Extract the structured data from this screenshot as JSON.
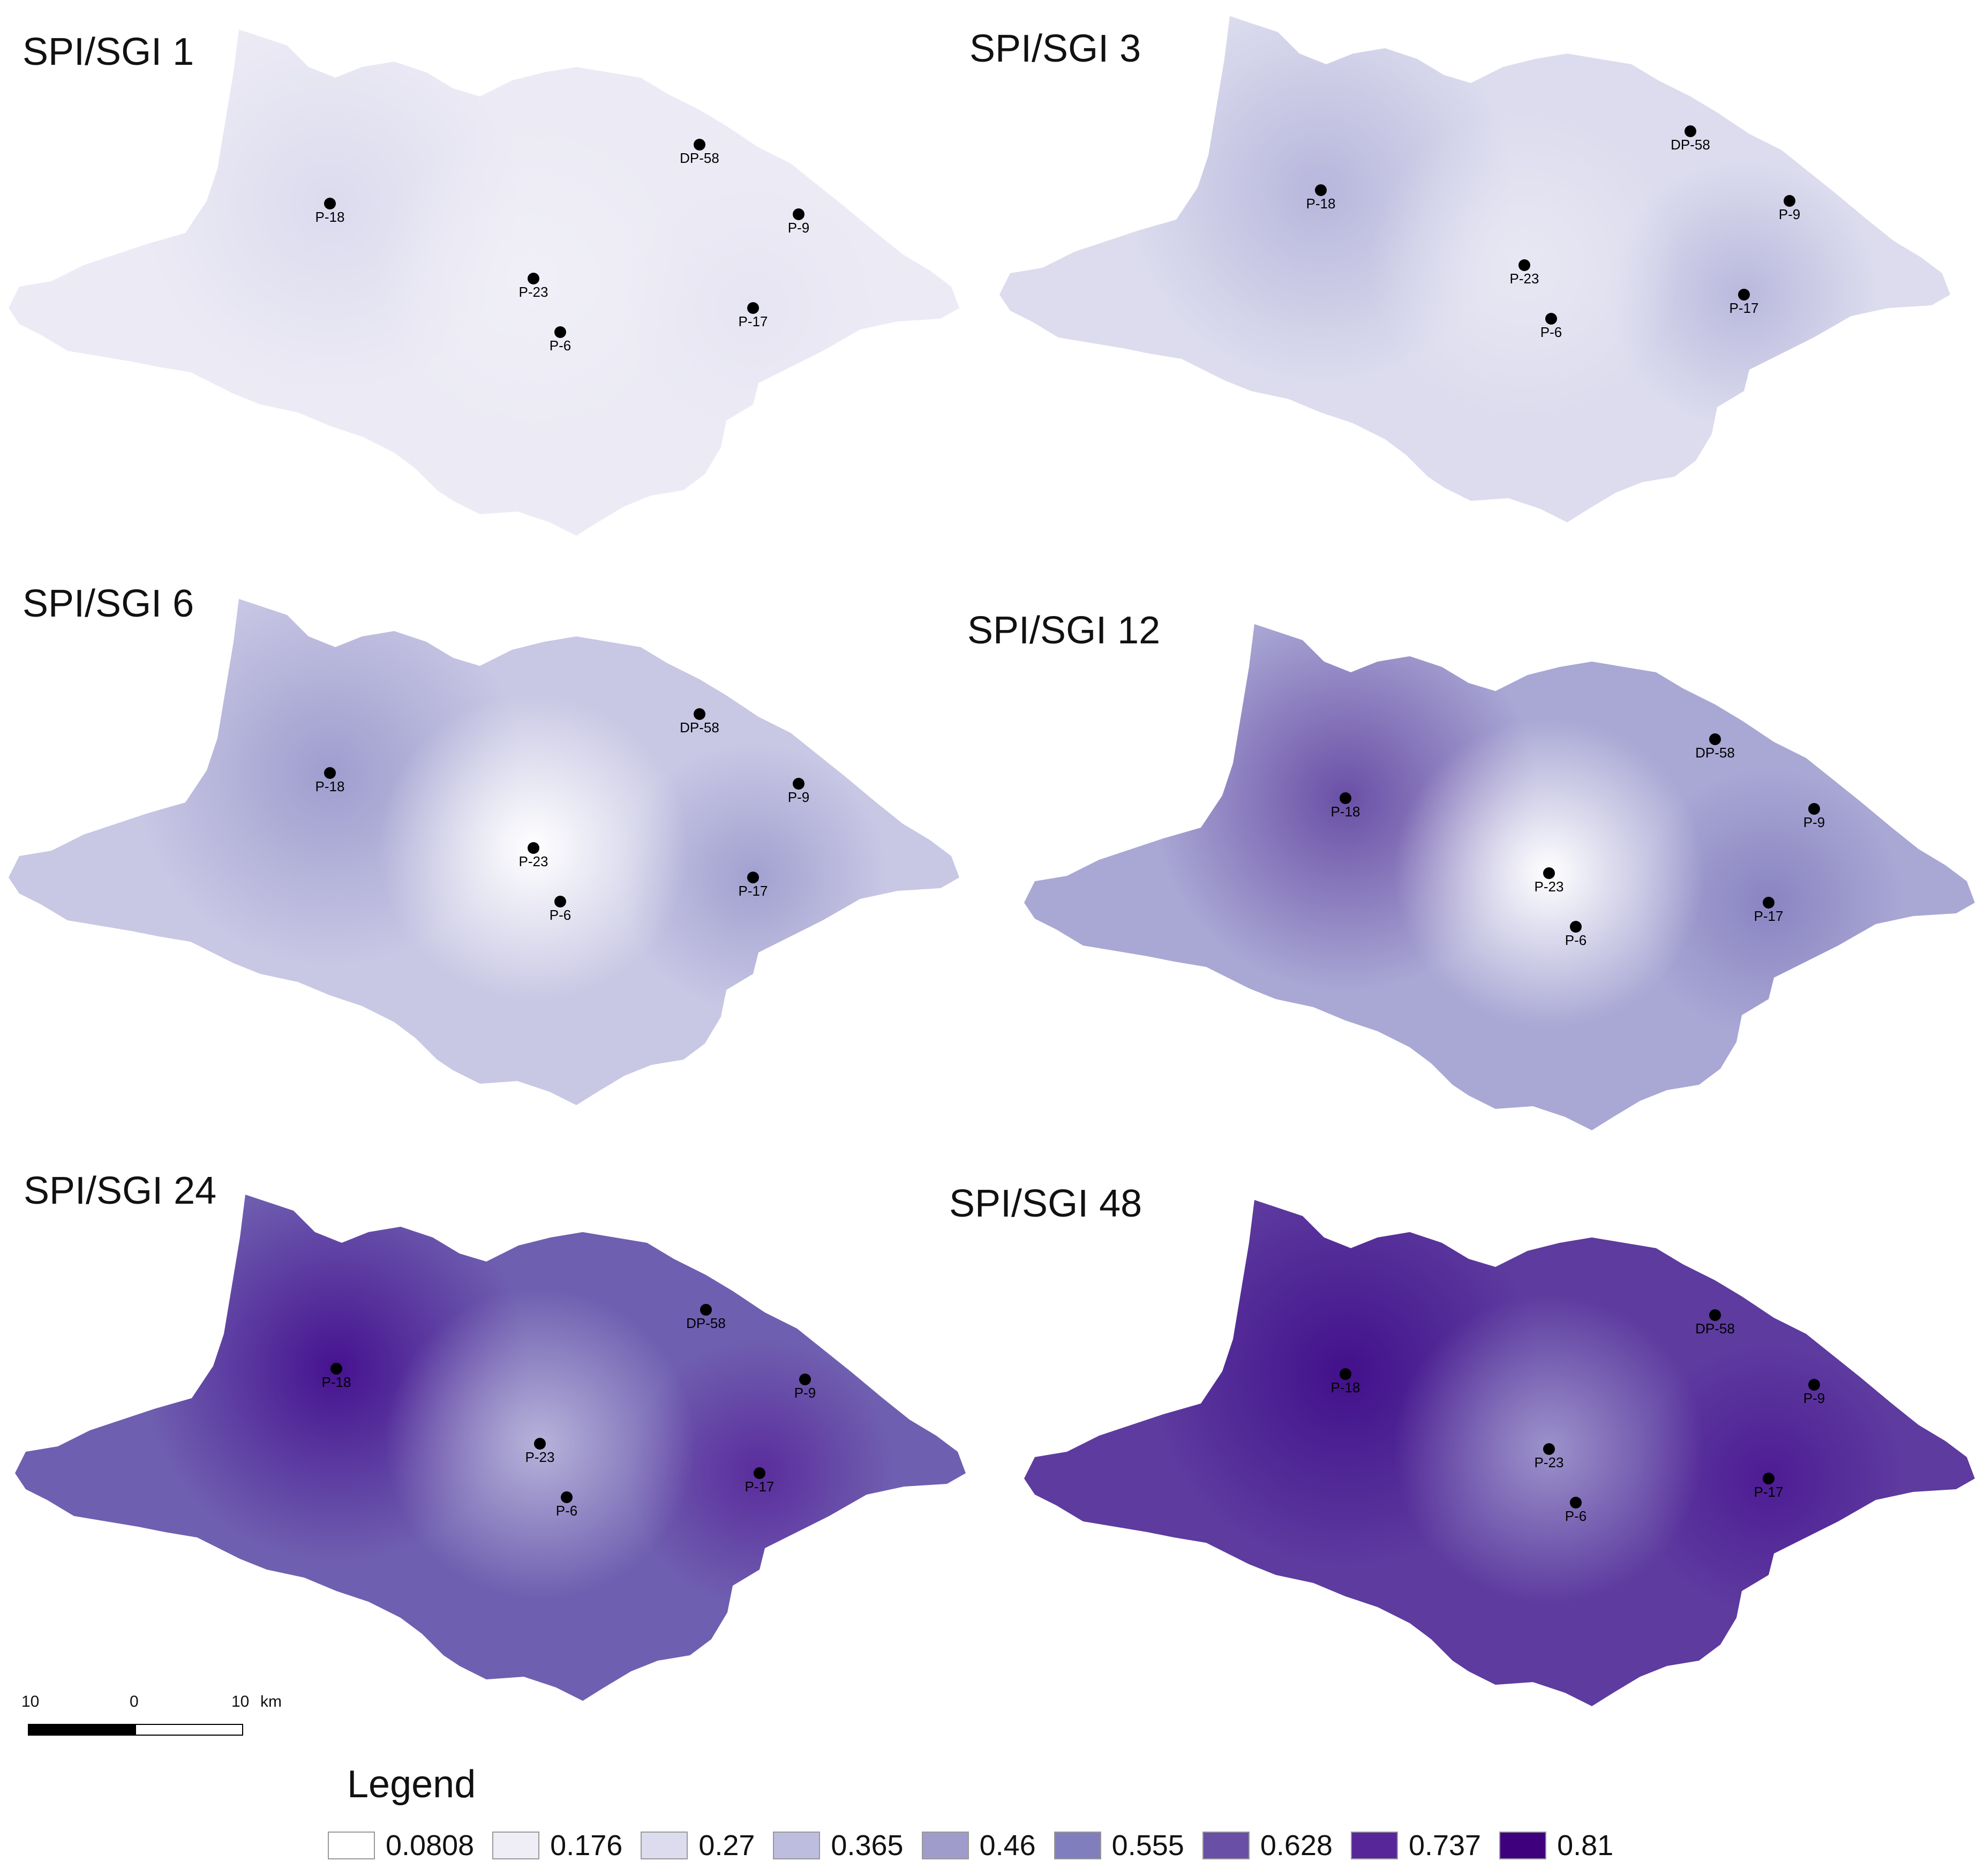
{
  "panels": [
    {
      "title": "SPI/SGI 1",
      "base": "#ecebf5",
      "hot": {
        "P-18": "#dcdbee",
        "P-17": "#e6e5f2",
        "P-23": "#f0eff7"
      }
    },
    {
      "title": "SPI/SGI 3",
      "base": "#dcdcee",
      "hot": {
        "P-18": "#b7b6dc",
        "P-17": "#b9b8dd",
        "P-23": "#e8e8f4"
      }
    },
    {
      "title": "SPI/SGI 6",
      "base": "#c8c7e4",
      "hot": {
        "P-18": "#9f9dce",
        "P-17": "#a2a0d0",
        "P-23": "#ffffff"
      }
    },
    {
      "title": "SPI/SGI 12",
      "base": "#a9a7d4",
      "hot": {
        "P-18": "#6a4fa6",
        "P-17": "#8a84c2",
        "P-23": "#ffffff"
      }
    },
    {
      "title": "SPI/SGI 24",
      "base": "#6f5fb0",
      "hot": {
        "P-18": "#46128f",
        "P-17": "#5a2c9c",
        "P-23": "#b7b3da"
      }
    },
    {
      "title": "SPI/SGI 48",
      "base": "#5d3b9f",
      "hot": {
        "P-18": "#42108b",
        "P-17": "#4e1b94",
        "P-23": "#9c93cb"
      }
    }
  ],
  "stations": [
    "DP-58",
    "P-18",
    "P-9",
    "P-23",
    "P-17",
    "P-6"
  ],
  "scale_bar": {
    "left_tick": "10",
    "mid_tick": "0",
    "right_tick": "10",
    "unit": "km"
  },
  "legend": {
    "title": "Legend",
    "items": [
      {
        "value": "0.0808",
        "color": "#ffffff"
      },
      {
        "value": "0.176",
        "color": "#efeef6"
      },
      {
        "value": "0.27",
        "color": "#dcdcee"
      },
      {
        "value": "0.365",
        "color": "#bdbde0"
      },
      {
        "value": "0.46",
        "color": "#9f9ccc"
      },
      {
        "value": "0.555",
        "color": "#807ebc"
      },
      {
        "value": "0.628",
        "color": "#6a4fa6"
      },
      {
        "value": "0.737",
        "color": "#57279a"
      },
      {
        "value": "0.81",
        "color": "#3f007d"
      }
    ]
  }
}
